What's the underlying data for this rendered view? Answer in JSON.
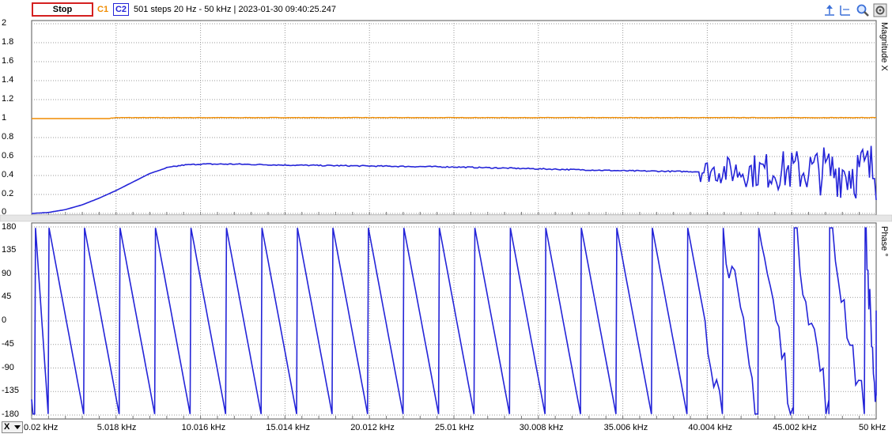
{
  "toolbar": {
    "stop_label": "Stop",
    "c1_label": "C1",
    "c2_label": "C2",
    "status": "501 steps  20 Hz - 50 kHz | 2023-01-30 09:40:25.247",
    "icons": [
      "cursor-marker-icon",
      "baseline-icon",
      "zoom-icon",
      "settings-icon"
    ]
  },
  "colors": {
    "c1": "#f08c00",
    "c2": "#2424d8",
    "stop_border": "#d42020",
    "grid": "#9a9a9a"
  },
  "magnitude_panel": {
    "label": "Magnitude X",
    "y_ticks": [
      "2",
      "1.8",
      "1.6",
      "1.4",
      "1.2",
      "1",
      "0.8",
      "0.6",
      "0.4",
      "0.2",
      "0"
    ]
  },
  "phase_panel": {
    "label": "Phase °",
    "y_ticks": [
      "180",
      "135",
      "90",
      "45",
      "0",
      "-45",
      "-90",
      "-135",
      "-180"
    ]
  },
  "x_axis": {
    "selector": "X",
    "ticks": [
      "0.02 kHz",
      "5.018 kHz",
      "10.016 kHz",
      "15.014 kHz",
      "20.012 kHz",
      "25.01 kHz",
      "30.008 kHz",
      "35.006 kHz",
      "40.004 kHz",
      "45.002 kHz",
      "50 kHz"
    ]
  },
  "chart_data": [
    {
      "type": "line",
      "ylabel": "Magnitude X",
      "ylim": [
        0,
        2
      ],
      "xlim": [
        0.02,
        50
      ],
      "x_unit": "kHz",
      "grid": true,
      "series": [
        {
          "name": "C1",
          "color": "#f08c00",
          "x": [
            0.02,
            4.5,
            5.0,
            10,
            20,
            30,
            40,
            50
          ],
          "y": [
            1.0,
            1.0,
            1.01,
            1.01,
            1.01,
            1.01,
            1.01,
            1.01
          ]
        },
        {
          "name": "C2",
          "color": "#2424d8",
          "x": [
            0.02,
            1,
            2,
            3,
            4,
            5,
            6,
            7,
            8,
            9,
            10,
            12,
            15,
            20,
            25,
            30,
            35,
            39.5,
            40,
            40.5,
            41,
            41.5,
            42,
            42.5,
            43,
            43.5,
            44,
            44.5,
            45,
            45.5,
            46,
            46.5,
            47,
            47.5,
            48,
            48.5,
            49,
            49.5,
            50
          ],
          "y": [
            0.0,
            0.01,
            0.04,
            0.09,
            0.16,
            0.24,
            0.33,
            0.42,
            0.48,
            0.51,
            0.52,
            0.52,
            0.51,
            0.5,
            0.49,
            0.47,
            0.45,
            0.44,
            0.37,
            0.5,
            0.4,
            0.55,
            0.35,
            0.6,
            0.3,
            0.62,
            0.33,
            0.58,
            0.3,
            0.65,
            0.2,
            0.68,
            0.2,
            0.72,
            0.15,
            0.75,
            0.1,
            0.75,
            0.4
          ]
        }
      ]
    },
    {
      "type": "line",
      "ylabel": "Phase °",
      "ylim": [
        -180,
        180
      ],
      "xlim": [
        0.02,
        50
      ],
      "x_unit": "kHz",
      "grid": true,
      "series": [
        {
          "name": "C2",
          "color": "#2424d8",
          "phase_wrap_starts_khz": [
            0.02,
            1.0,
            3.1,
            5.2,
            7.3,
            9.4,
            11.5,
            13.6,
            15.7,
            17.8,
            19.9,
            22.0,
            24.1,
            26.2,
            28.3,
            30.4,
            32.5,
            34.6,
            36.7,
            38.8,
            40.9,
            43.0,
            45.1,
            47.2,
            49.3
          ],
          "note_x": [
            0.02,
            50
          ],
          "y_range": [
            -180,
            180
          ]
        }
      ]
    }
  ]
}
